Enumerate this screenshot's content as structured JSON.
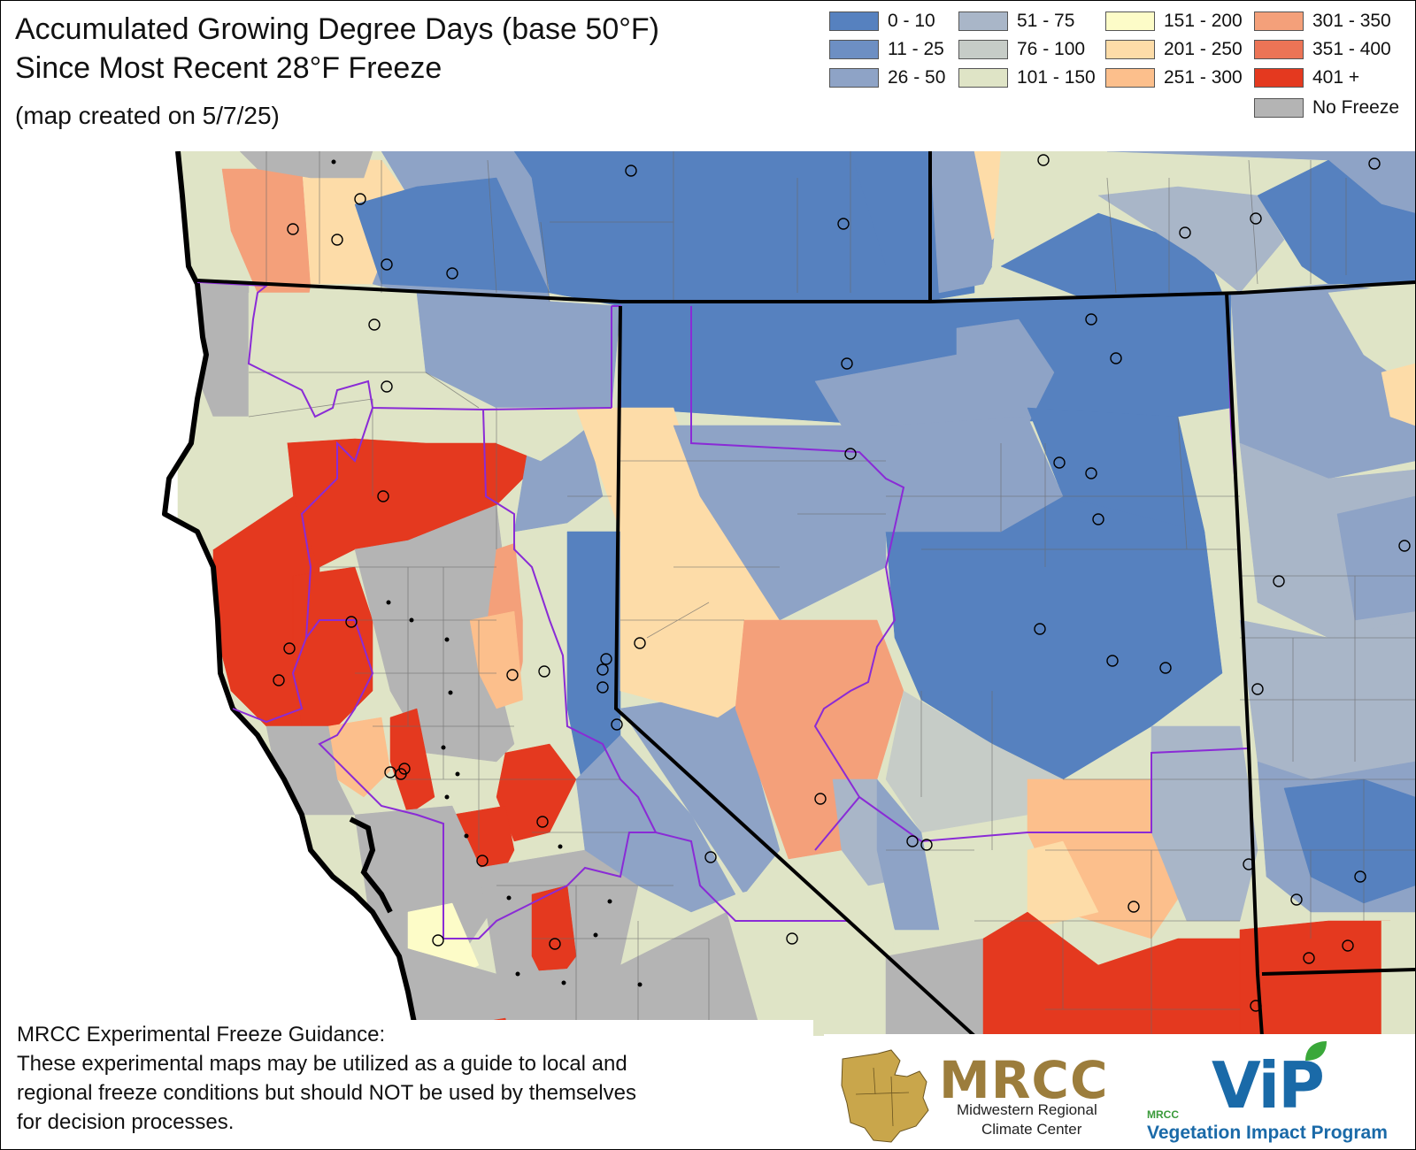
{
  "title": {
    "line1": "Accumulated Growing Degree Days (base 50°F)",
    "line2": "Since Most Recent 28°F Freeze"
  },
  "subtitle": "(map created on 5/7/25)",
  "legend": [
    {
      "label": "0 - 10",
      "color": "#5681bf"
    },
    {
      "label": "11 - 25",
      "color": "#6d8fc3"
    },
    {
      "label": "26 - 50",
      "color": "#8ea3c6"
    },
    {
      "label": "51 - 75",
      "color": "#a9b6c8"
    },
    {
      "label": "76 - 100",
      "color": "#c6ccc7"
    },
    {
      "label": "101 - 150",
      "color": "#dfe4c6"
    },
    {
      "label": "151 - 200",
      "color": "#fdfcc8"
    },
    {
      "label": "201 - 250",
      "color": "#fddca8"
    },
    {
      "label": "251 - 300",
      "color": "#fcbf8c"
    },
    {
      "label": "301 - 350",
      "color": "#f4a07a"
    },
    {
      "label": "351 - 400",
      "color": "#ec7456"
    },
    {
      "label": "401 +",
      "color": "#e4391f"
    },
    {
      "label": "No Freeze",
      "color": "#b4b4b4"
    }
  ],
  "disclaimer": {
    "heading": "MRCC Experimental Freeze Guidance:",
    "line1": "These experimental maps may be utilized as a guide to local and",
    "line2": "regional freeze conditions but should NOT be used by themselves",
    "line3": "for decision processes."
  },
  "logos": {
    "mrcc": "MRCC",
    "mrcc_line1": "Midwestern Regional",
    "mrcc_line2": "Climate Center",
    "vip": "ViP",
    "vip_small": "MRCC",
    "vip_program": "Vegetation Impact Program"
  },
  "map_colors": {
    "ocean": "#ffffff",
    "state_border": "#000000",
    "division_border": "#8a2bd6",
    "county_border": "#6a6a6a",
    "station_marker": "#000000"
  }
}
